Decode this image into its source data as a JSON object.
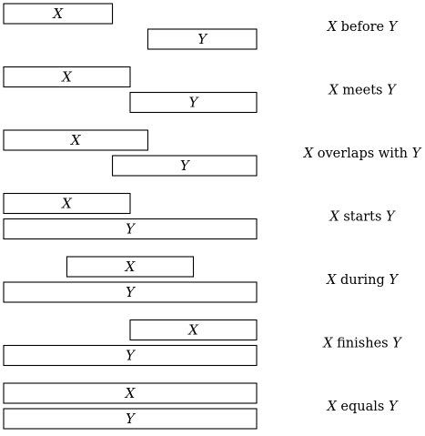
{
  "diagram": {
    "relations": [
      {
        "label_var1": "X",
        "label_word": "before",
        "label_var2": "Y",
        "bars": [
          {
            "name": "X",
            "start": 0,
            "end": 0.43
          },
          {
            "name": "Y",
            "start": 0.57,
            "end": 1.0
          }
        ]
      },
      {
        "label_var1": "X",
        "label_word": "meets",
        "label_var2": "Y",
        "bars": [
          {
            "name": "X",
            "start": 0,
            "end": 0.5
          },
          {
            "name": "Y",
            "start": 0.5,
            "end": 1.0
          }
        ]
      },
      {
        "label_var1": "X",
        "label_word": "overlaps with",
        "label_var2": "Y",
        "bars": [
          {
            "name": "X",
            "start": 0,
            "end": 0.57
          },
          {
            "name": "Y",
            "start": 0.43,
            "end": 1.0
          }
        ]
      },
      {
        "label_var1": "X",
        "label_word": "starts",
        "label_var2": "Y",
        "bars": [
          {
            "name": "X",
            "start": 0,
            "end": 0.5
          },
          {
            "name": "Y",
            "start": 0,
            "end": 1.0
          }
        ]
      },
      {
        "label_var1": "X",
        "label_word": "during",
        "label_var2": "Y",
        "bars": [
          {
            "name": "X",
            "start": 0.25,
            "end": 0.75
          },
          {
            "name": "Y",
            "start": 0,
            "end": 1.0
          }
        ]
      },
      {
        "label_var1": "X",
        "label_word": "finishes",
        "label_var2": "Y",
        "bars": [
          {
            "name": "X",
            "start": 0.5,
            "end": 1.0
          },
          {
            "name": "Y",
            "start": 0,
            "end": 1.0
          }
        ]
      },
      {
        "label_var1": "X",
        "label_word": "equals",
        "label_var2": "Y",
        "bars": [
          {
            "name": "X",
            "start": 0,
            "end": 1.0
          },
          {
            "name": "Y",
            "start": 0,
            "end": 1.0
          }
        ]
      }
    ]
  }
}
